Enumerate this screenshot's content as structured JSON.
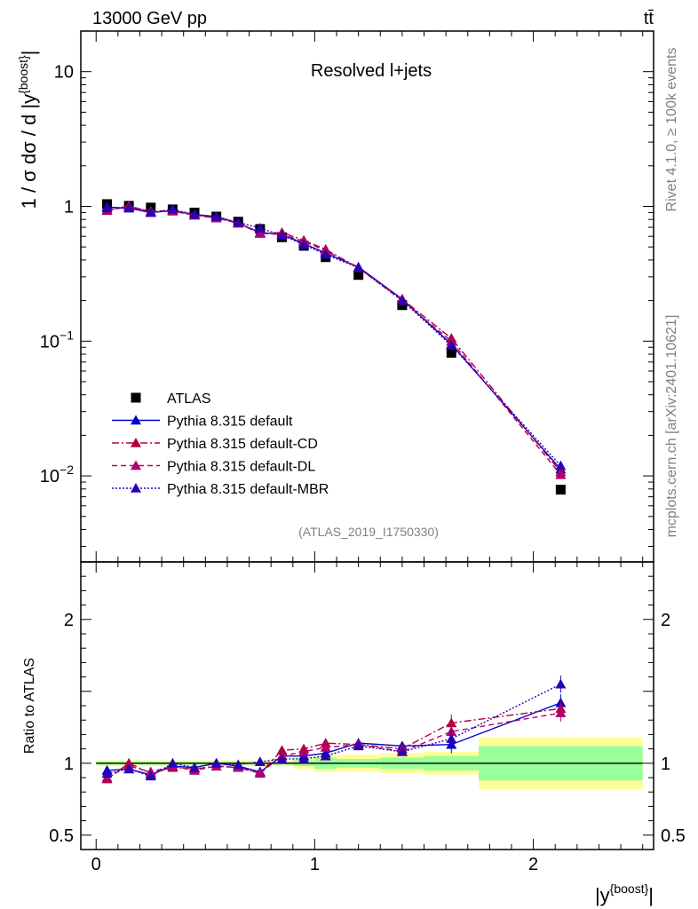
{
  "header": {
    "energy_label": "13000 GeV pp",
    "process_label": "tt̄",
    "plot_title": "Resolved l+jets",
    "analysis_id": "(ATLAS_2019_I1750330)",
    "rivet_label": "Rivet 4.1.0, ≥ 100k events",
    "mcplots_label": "mcplots.cern.ch [arXiv:2401.10621]"
  },
  "colors": {
    "data": "#000000",
    "default": "#0000cc",
    "cd": "#b0003c",
    "dl": "#b0006e",
    "mbr": "#2d00b4",
    "band_inner": "#99ff99",
    "band_outer": "#ffff99"
  },
  "chart_data": [
    {
      "type": "scatter",
      "name": "main",
      "title": "Resolved l+jets",
      "ylabel": "1 / σ dσ / d |y^{boost}|",
      "yscale": "log",
      "ylim": [
        0.0023,
        20
      ],
      "xlim": [
        -0.07,
        2.55
      ],
      "ytick_labels": [
        "10^{-2}",
        "10^{-1}",
        "1",
        "10"
      ],
      "legend_position": "lower-left",
      "x": [
        0.05,
        0.15,
        0.25,
        0.35,
        0.45,
        0.55,
        0.65,
        0.75,
        0.85,
        0.95,
        1.05,
        1.2,
        1.4,
        1.625,
        2.125
      ],
      "series": [
        {
          "name": "ATLAS",
          "key": "data",
          "marker": "square",
          "values": [
            1.04,
            1.01,
            0.98,
            0.95,
            0.9,
            0.84,
            0.77,
            0.68,
            0.59,
            0.51,
            0.42,
            0.31,
            0.185,
            0.082,
            0.0079
          ]
        },
        {
          "name": "Pythia 8.315 default",
          "key": "default",
          "line": "solid",
          "values": [
            0.99,
            0.97,
            0.9,
            0.93,
            0.87,
            0.84,
            0.75,
            0.64,
            0.62,
            0.53,
            0.45,
            0.355,
            0.205,
            0.095,
            0.0112
          ]
        },
        {
          "name": "Pythia 8.315 default-CD",
          "key": "cd",
          "line": "dashdot",
          "values": [
            0.93,
            1.01,
            0.91,
            0.92,
            0.86,
            0.82,
            0.75,
            0.63,
            0.64,
            0.56,
            0.48,
            0.35,
            0.205,
            0.105,
            0.0107
          ]
        },
        {
          "name": "Pythia 8.315 default-DL",
          "key": "dl",
          "line": "dashed",
          "values": [
            0.94,
            0.99,
            0.92,
            0.93,
            0.86,
            0.82,
            0.75,
            0.63,
            0.62,
            0.55,
            0.47,
            0.35,
            0.2,
            0.1,
            0.0102
          ]
        },
        {
          "name": "Pythia 8.315 default-MBR",
          "key": "mbr",
          "line": "dotted",
          "values": [
            0.97,
            0.97,
            0.9,
            0.95,
            0.87,
            0.84,
            0.76,
            0.69,
            0.61,
            0.52,
            0.44,
            0.35,
            0.2,
            0.093,
            0.0119
          ]
        }
      ]
    },
    {
      "type": "scatter",
      "name": "ratio",
      "ylabel": "Ratio to ATLAS",
      "xlabel": "|y^{boost}|",
      "ylim": [
        0.4,
        2.4
      ],
      "xlim": [
        -0.07,
        2.55
      ],
      "xtick_labels": [
        "0",
        "1",
        "2"
      ],
      "ytick_labels": [
        "0.5",
        "1",
        "2"
      ],
      "reference": 1,
      "band_edges": [
        0,
        0.1,
        0.2,
        0.3,
        0.4,
        0.5,
        0.6,
        0.7,
        0.8,
        0.9,
        1.0,
        1.1,
        1.3,
        1.5,
        1.75,
        2.5
      ],
      "band_inner": [
        0.01,
        0.01,
        0.01,
        0.01,
        0.01,
        0.01,
        0.01,
        0.01,
        0.01,
        0.02,
        0.04,
        0.03,
        0.04,
        0.05,
        0.12
      ],
      "band_outer": [
        0.02,
        0.02,
        0.02,
        0.02,
        0.02,
        0.02,
        0.02,
        0.02,
        0.02,
        0.04,
        0.06,
        0.06,
        0.07,
        0.08,
        0.18
      ],
      "x": [
        0.05,
        0.15,
        0.25,
        0.35,
        0.45,
        0.55,
        0.65,
        0.75,
        0.85,
        0.95,
        1.05,
        1.2,
        1.4,
        1.625,
        2.125
      ],
      "series": [
        {
          "name": "Pythia 8.315 default",
          "key": "default",
          "values": [
            0.95,
            0.96,
            0.92,
            0.98,
            0.97,
            1.0,
            0.98,
            0.94,
            1.05,
            1.05,
            1.07,
            1.14,
            1.12,
            1.13,
            1.42
          ]
        },
        {
          "name": "Pythia 8.315 default-CD",
          "key": "cd",
          "values": [
            0.89,
            1.0,
            0.93,
            0.97,
            0.96,
            0.98,
            0.97,
            0.93,
            1.09,
            1.1,
            1.14,
            1.13,
            1.1,
            1.28,
            1.38
          ]
        },
        {
          "name": "Pythia 8.315 default-DL",
          "key": "dl",
          "values": [
            0.9,
            0.98,
            0.94,
            0.98,
            0.95,
            0.98,
            0.97,
            0.93,
            1.05,
            1.08,
            1.11,
            1.13,
            1.08,
            1.22,
            1.35
          ]
        },
        {
          "name": "Pythia 8.315 default-MBR",
          "key": "mbr",
          "values": [
            0.93,
            0.96,
            0.91,
            1.0,
            0.97,
            1.0,
            0.99,
            1.01,
            1.03,
            1.03,
            1.05,
            1.12,
            1.08,
            1.17,
            1.55
          ]
        }
      ]
    }
  ]
}
